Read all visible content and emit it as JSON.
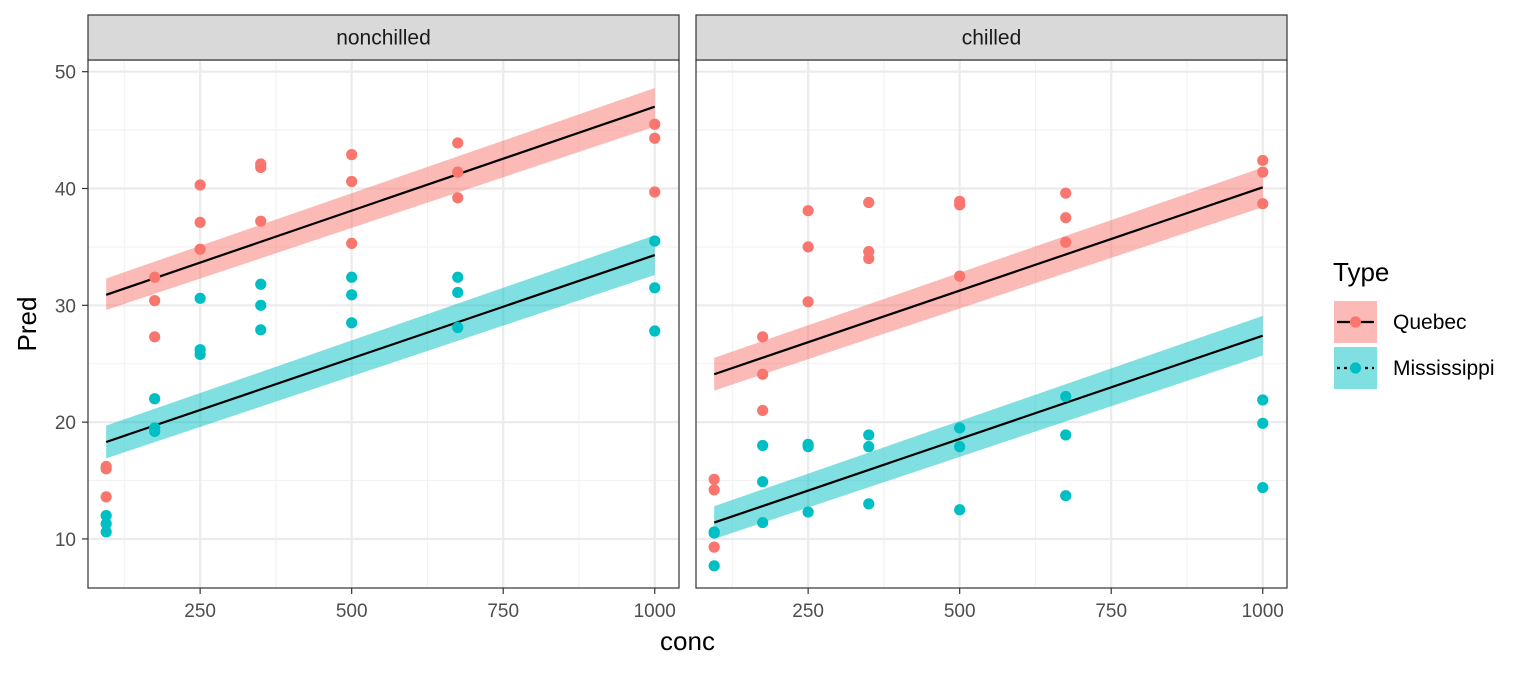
{
  "chart_data": {
    "type": "scatter",
    "xlabel": "conc",
    "ylabel": "Pred",
    "xlim": [
      65,
      1040
    ],
    "ylim": [
      5.8,
      51.0
    ],
    "x_ticks": [
      250,
      500,
      750,
      1000
    ],
    "y_ticks": [
      10,
      20,
      30,
      40,
      50
    ],
    "grid": true,
    "legend": {
      "title": "Type",
      "position": "right",
      "entries": [
        {
          "name": "Quebec",
          "color": "#F8766D",
          "band_color": "#F8766D",
          "linetype": "solid"
        },
        {
          "name": "Mississippi",
          "color": "#00BFC4",
          "band_color": "#00BFC4",
          "linetype": "dotted"
        }
      ]
    },
    "panels": [
      {
        "title": "nonchilled",
        "series": [
          {
            "name": "Quebec",
            "points": [
              [
                95,
                16.0
              ],
              [
                95,
                16.2
              ],
              [
                95,
                13.6
              ],
              [
                175,
                32.4
              ],
              [
                175,
                30.4
              ],
              [
                175,
                27.3
              ],
              [
                250,
                40.3
              ],
              [
                250,
                37.1
              ],
              [
                250,
                34.8
              ],
              [
                350,
                42.1
              ],
              [
                350,
                41.8
              ],
              [
                350,
                37.2
              ],
              [
                500,
                42.9
              ],
              [
                500,
                40.6
              ],
              [
                500,
                35.3
              ],
              [
                675,
                43.9
              ],
              [
                675,
                41.4
              ],
              [
                675,
                39.2
              ],
              [
                1000,
                45.5
              ],
              [
                1000,
                44.3
              ],
              [
                1000,
                39.7
              ]
            ],
            "fit": [
              [
                95,
                30.9
              ],
              [
                1000,
                47.0
              ]
            ],
            "band": [
              [
                95,
                29.6,
                32.3
              ],
              [
                1000,
                45.3,
                48.6
              ]
            ]
          },
          {
            "name": "Mississippi",
            "points": [
              [
                95,
                12.0
              ],
              [
                95,
                11.3
              ],
              [
                95,
                10.6
              ],
              [
                175,
                22.0
              ],
              [
                175,
                19.5
              ],
              [
                175,
                19.2
              ],
              [
                250,
                30.6
              ],
              [
                250,
                26.2
              ],
              [
                250,
                25.8
              ],
              [
                350,
                31.8
              ],
              [
                350,
                30.0
              ],
              [
                350,
                27.9
              ],
              [
                500,
                32.4
              ],
              [
                500,
                30.9
              ],
              [
                500,
                28.5
              ],
              [
                675,
                32.4
              ],
              [
                675,
                31.1
              ],
              [
                675,
                28.1
              ],
              [
                1000,
                35.5
              ],
              [
                1000,
                31.5
              ],
              [
                1000,
                27.8
              ]
            ],
            "fit": [
              [
                95,
                18.3
              ],
              [
                1000,
                34.3
              ]
            ],
            "band": [
              [
                95,
                16.9,
                19.7
              ],
              [
                1000,
                32.6,
                36.0
              ]
            ]
          }
        ]
      },
      {
        "title": "chilled",
        "series": [
          {
            "name": "Quebec",
            "points": [
              [
                95,
                15.1
              ],
              [
                95,
                14.2
              ],
              [
                95,
                9.3
              ],
              [
                175,
                27.3
              ],
              [
                175,
                24.1
              ],
              [
                175,
                21.0
              ],
              [
                250,
                38.1
              ],
              [
                250,
                35.0
              ],
              [
                250,
                30.3
              ],
              [
                350,
                38.8
              ],
              [
                350,
                34.6
              ],
              [
                350,
                34.0
              ],
              [
                500,
                38.9
              ],
              [
                500,
                38.6
              ],
              [
                500,
                32.5
              ],
              [
                675,
                39.6
              ],
              [
                675,
                37.5
              ],
              [
                675,
                35.4
              ],
              [
                1000,
                42.4
              ],
              [
                1000,
                41.4
              ],
              [
                1000,
                38.7
              ]
            ],
            "fit": [
              [
                95,
                24.1
              ],
              [
                1000,
                40.1
              ]
            ],
            "band": [
              [
                95,
                22.7,
                25.5
              ],
              [
                1000,
                38.4,
                41.8
              ]
            ]
          },
          {
            "name": "Mississippi",
            "points": [
              [
                95,
                10.6
              ],
              [
                95,
                10.5
              ],
              [
                95,
                7.7
              ],
              [
                175,
                18.0
              ],
              [
                175,
                14.9
              ],
              [
                175,
                11.4
              ],
              [
                250,
                18.1
              ],
              [
                250,
                17.9
              ],
              [
                250,
                12.3
              ],
              [
                350,
                18.9
              ],
              [
                350,
                17.9
              ],
              [
                350,
                13.0
              ],
              [
                500,
                19.5
              ],
              [
                500,
                17.9
              ],
              [
                500,
                12.5
              ],
              [
                675,
                22.2
              ],
              [
                675,
                18.9
              ],
              [
                675,
                13.7
              ],
              [
                1000,
                21.9
              ],
              [
                1000,
                19.9
              ],
              [
                1000,
                14.4
              ]
            ],
            "fit": [
              [
                95,
                11.4
              ],
              [
                1000,
                27.4
              ]
            ],
            "band": [
              [
                95,
                10.0,
                12.8
              ],
              [
                1000,
                25.7,
                29.1
              ]
            ]
          }
        ]
      }
    ]
  }
}
